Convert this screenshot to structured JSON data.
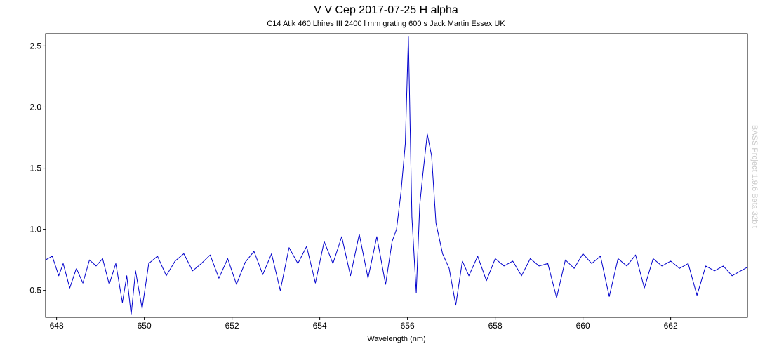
{
  "chart_data": {
    "type": "line",
    "title": "V V Cep 2017-07-25 H alpha",
    "subtitle": "C14 Atik 460 Lhires III 2400 l mm grating 600 s Jack Martin Essex UK",
    "xlabel": "Wavelength (nm)",
    "ylabel": "",
    "watermark": "BASS Project 1.9.6 Beta 32bit",
    "xlim": [
      647.75,
      663.75
    ],
    "ylim": [
      0.28,
      2.6
    ],
    "xticks": [
      648,
      650,
      652,
      654,
      656,
      658,
      660,
      662
    ],
    "xtick_labels": [
      "648",
      "650",
      "652",
      "654",
      "656",
      "658",
      "660",
      "662"
    ],
    "yticks": [
      0.5,
      1.0,
      1.5,
      2.0,
      2.5
    ],
    "ytick_labels": [
      "0.5",
      "1.0",
      "1.5",
      "2.0",
      "2.5"
    ],
    "grid": true,
    "line_color": "#0000cc",
    "series": [
      {
        "x": [
          647.75,
          647.9,
          648.05,
          648.15,
          648.3,
          648.45,
          648.6,
          648.75,
          648.9,
          649.05,
          649.2,
          649.35,
          649.5,
          649.6,
          649.7,
          649.8,
          649.95,
          650.1,
          650.3,
          650.5,
          650.7,
          650.9,
          651.1,
          651.3,
          651.5,
          651.7,
          651.9,
          652.1,
          652.3,
          652.5,
          652.7,
          652.9,
          653.1,
          653.3,
          653.5,
          653.7,
          653.9,
          654.1,
          654.3,
          654.5,
          654.7,
          654.9,
          655.1,
          655.3,
          655.5,
          655.65,
          655.75,
          655.85,
          655.95,
          656.02,
          656.1,
          656.2,
          656.28,
          656.35,
          656.45,
          656.55,
          656.65,
          656.8,
          656.95,
          657.1,
          657.25,
          657.4,
          657.6,
          657.8,
          658.0,
          658.2,
          658.4,
          658.6,
          658.8,
          659.0,
          659.2,
          659.4,
          659.6,
          659.8,
          660.0,
          660.2,
          660.4,
          660.6,
          660.8,
          661.0,
          661.2,
          661.4,
          661.6,
          661.8,
          662.0,
          662.2,
          662.4,
          662.6,
          662.8,
          663.0,
          663.2,
          663.4,
          663.6,
          663.75
        ],
        "y": [
          0.75,
          0.78,
          0.62,
          0.72,
          0.52,
          0.68,
          0.56,
          0.75,
          0.7,
          0.76,
          0.55,
          0.72,
          0.4,
          0.62,
          0.3,
          0.66,
          0.35,
          0.72,
          0.78,
          0.62,
          0.74,
          0.8,
          0.66,
          0.72,
          0.79,
          0.6,
          0.76,
          0.55,
          0.73,
          0.82,
          0.63,
          0.8,
          0.5,
          0.85,
          0.72,
          0.86,
          0.56,
          0.9,
          0.72,
          0.94,
          0.62,
          0.96,
          0.6,
          0.94,
          0.55,
          0.9,
          1.0,
          1.3,
          1.7,
          2.58,
          1.1,
          0.48,
          1.2,
          1.45,
          1.78,
          1.6,
          1.05,
          0.8,
          0.68,
          0.38,
          0.74,
          0.62,
          0.78,
          0.58,
          0.76,
          0.7,
          0.74,
          0.62,
          0.76,
          0.7,
          0.72,
          0.44,
          0.75,
          0.68,
          0.8,
          0.72,
          0.78,
          0.45,
          0.76,
          0.7,
          0.79,
          0.52,
          0.76,
          0.7,
          0.74,
          0.68,
          0.72,
          0.46,
          0.7,
          0.66,
          0.7,
          0.62,
          0.66,
          0.69
        ]
      }
    ]
  }
}
